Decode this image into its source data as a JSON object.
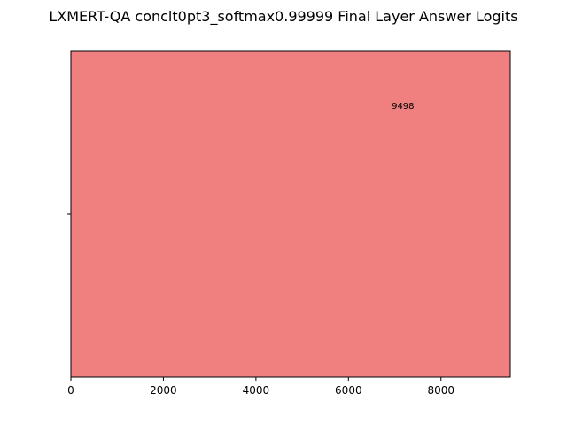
{
  "chart_data": {
    "type": "bar",
    "orientation": "horizontal",
    "title": "LXMERT-QA conclt0pt3_softmax0.99999 Final Layer Answer Logits",
    "categories": [
      ""
    ],
    "values": [
      9498
    ],
    "data_labels": [
      "9498"
    ],
    "xlim": [
      0,
      9498
    ],
    "x_ticks": [
      0,
      2000,
      4000,
      6000,
      8000
    ],
    "x_tick_labels": [
      "0",
      "2000",
      "4000",
      "6000",
      "8000"
    ],
    "xlabel": "",
    "ylabel": "",
    "grid": false,
    "legend": "none",
    "bar_color": "#f08080"
  }
}
